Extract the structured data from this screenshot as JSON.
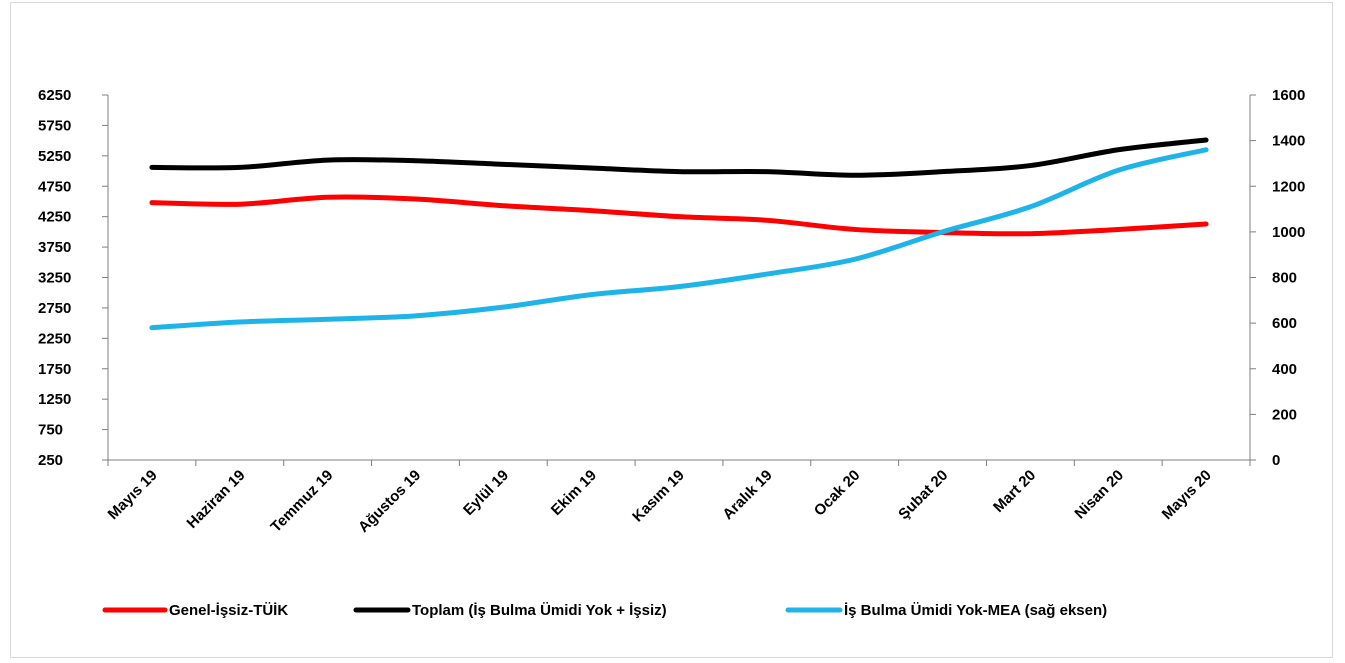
{
  "chart_data": {
    "type": "line",
    "categories": [
      "Mayıs 19",
      "Haziran 19",
      "Temmuz 19",
      "Ağustos 19",
      "Eylül 19",
      "Ekim 19",
      "Kasım 19",
      "Aralık 19",
      "Ocak 20",
      "Şubat 20",
      "Mart 20",
      "Nisan 20",
      "Mayıs 20"
    ],
    "left_axis": {
      "ylim": [
        250,
        6250
      ],
      "ticks": [
        "6250",
        "5750",
        "5250",
        "4750",
        "4250",
        "3750",
        "3250",
        "2750",
        "2250",
        "1750",
        "1250",
        "750",
        "250"
      ]
    },
    "right_axis": {
      "ylim": [
        0,
        1600
      ],
      "ticks": [
        "1600",
        "1400",
        "1200",
        "1000",
        "800",
        "600",
        "400",
        "200",
        "0"
      ]
    },
    "series": [
      {
        "name": "Genel-İşsiz-TÜİK",
        "axis": "left",
        "color": "#ff0000",
        "values": [
          4480,
          4455,
          4570,
          4540,
          4430,
          4350,
          4250,
          4190,
          4040,
          3990,
          3970,
          4040,
          4130
        ]
      },
      {
        "name": "Toplam (İş Bulma Ümidi Yok + İşsiz)",
        "axis": "left",
        "color": "#000000",
        "values": [
          5060,
          5060,
          5180,
          5170,
          5110,
          5050,
          4990,
          4990,
          4930,
          4990,
          5090,
          5350,
          5510
        ]
      },
      {
        "name": "İş Bulma Ümidi Yok-MEA (sağ eksen)",
        "axis": "right",
        "color": "#1fb4e8",
        "values": [
          580,
          605,
          617,
          632,
          670,
          725,
          760,
          815,
          880,
          1000,
          1110,
          1270,
          1360
        ]
      }
    ],
    "grid": false,
    "legend": "bottom"
  }
}
